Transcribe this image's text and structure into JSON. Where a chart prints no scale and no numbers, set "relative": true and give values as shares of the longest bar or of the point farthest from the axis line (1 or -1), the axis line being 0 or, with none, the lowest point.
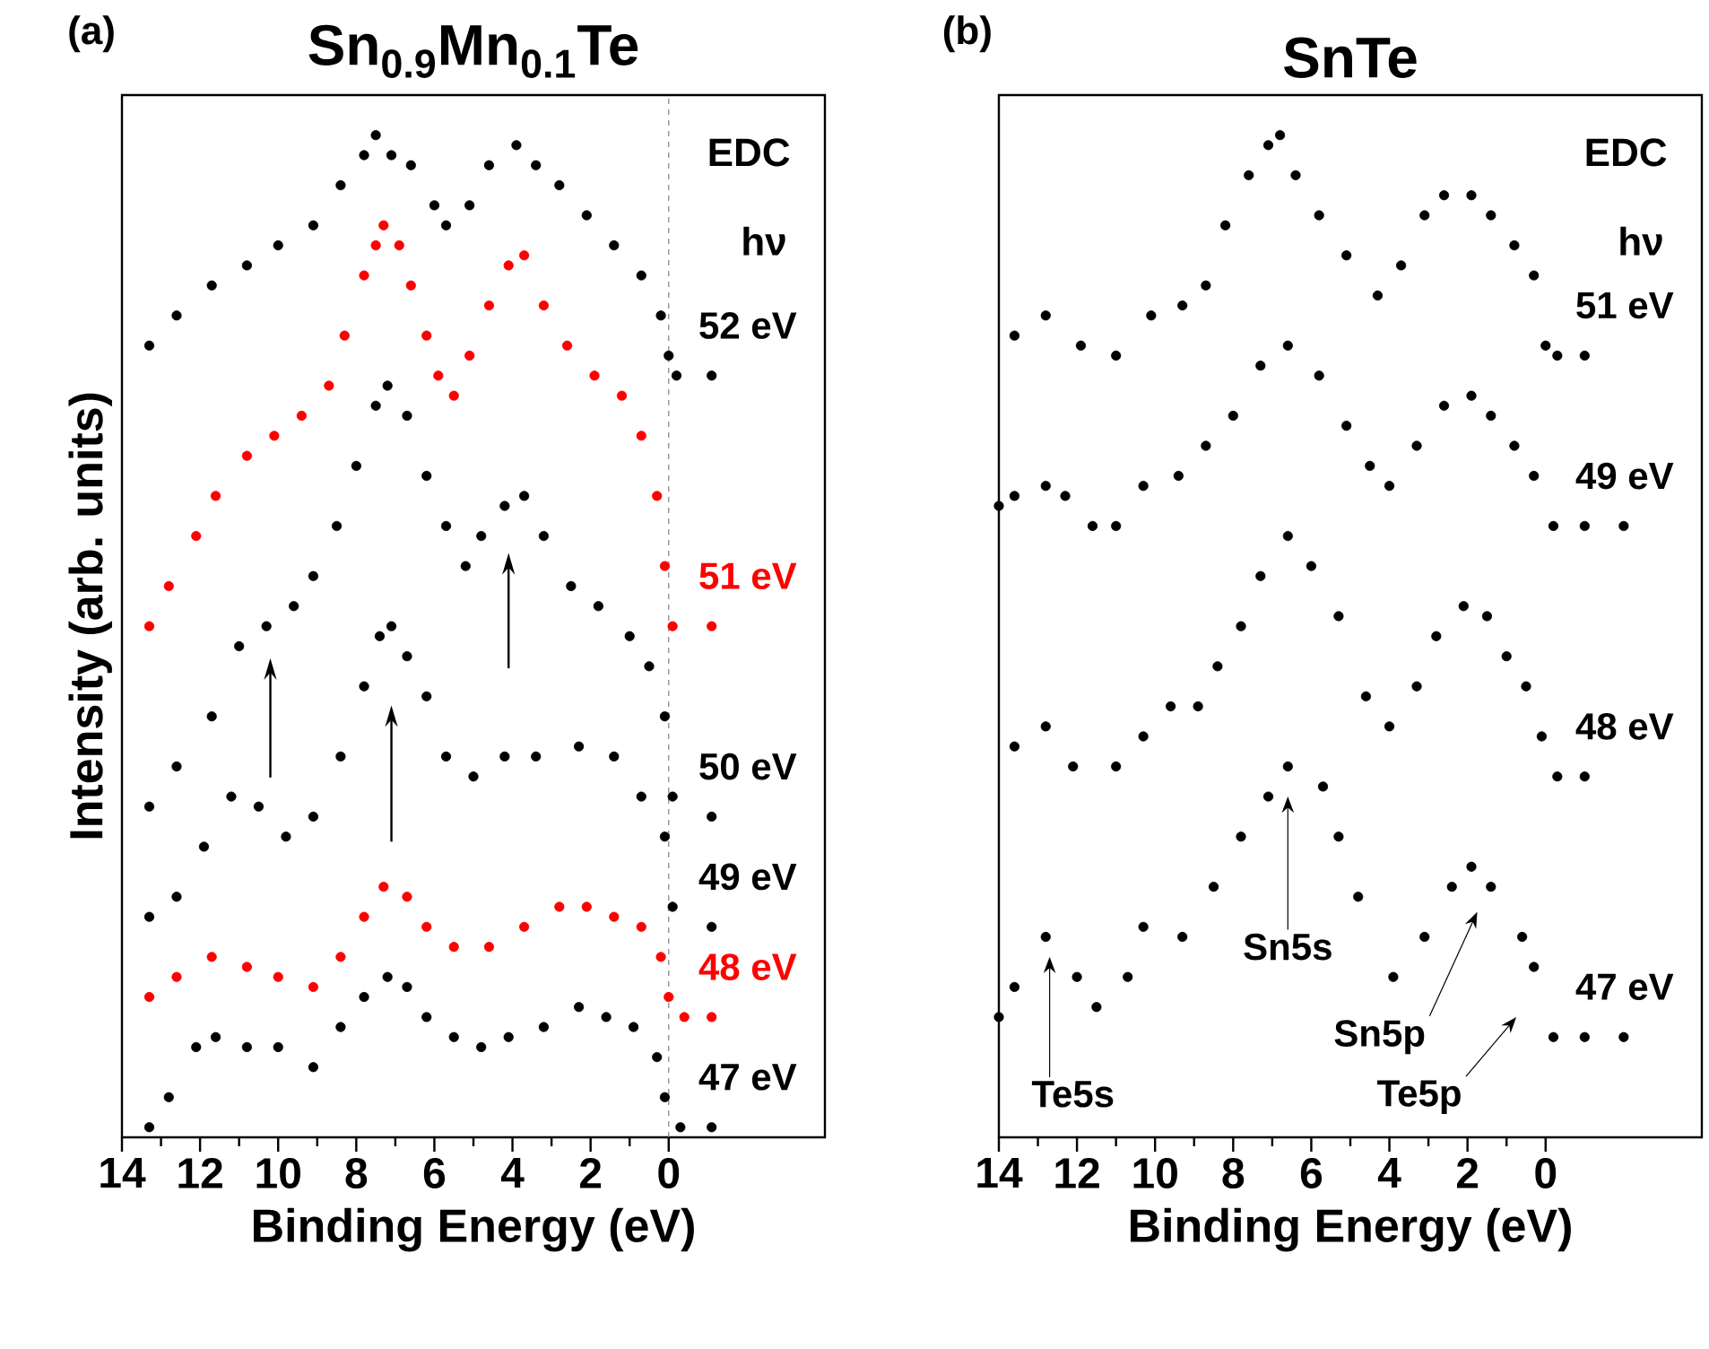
{
  "chart_data": [
    {
      "type": "scatter",
      "title": "Sn$_{0.9}$Mn$_{0.1}$Te",
      "xlabel": "Binding Energy (eV)",
      "ylabel": "Intensity (arb. units)",
      "relative": true,
      "marker": "circle",
      "xlim": [
        14,
        -4
      ],
      "xticks": [
        14,
        12,
        10,
        8,
        6,
        4,
        2,
        0
      ],
      "annotations": [
        "(a)",
        "EDC",
        "hν"
      ],
      "ref_lines": [
        {
          "axis": "x",
          "value": 0,
          "color": "#808080",
          "line_style": "dashed"
        }
      ],
      "series": [
        {
          "name": "52 eV",
          "color": "#000000",
          "x": [
            13.3,
            12.6,
            11.7,
            10.8,
            10.0,
            9.1,
            8.4,
            7.8,
            7.5,
            7.1,
            6.6,
            6.0,
            5.7,
            5.1,
            4.6,
            3.9,
            3.4,
            2.8,
            2.1,
            1.4,
            0.7,
            0.2,
            0.0,
            -0.2,
            -1.1
          ],
          "values": [
            0.79,
            0.82,
            0.85,
            0.87,
            0.89,
            0.91,
            0.95,
            0.98,
            1.0,
            0.98,
            0.97,
            0.93,
            0.91,
            0.93,
            0.97,
            0.99,
            0.97,
            0.95,
            0.92,
            0.89,
            0.86,
            0.82,
            0.78,
            0.76,
            0.76
          ]
        },
        {
          "name": "51 eV",
          "color": "#ff0000",
          "x": [
            13.3,
            12.8,
            12.1,
            11.6,
            10.8,
            10.1,
            9.4,
            8.7,
            8.3,
            7.8,
            7.5,
            7.3,
            6.9,
            6.6,
            6.2,
            5.9,
            5.5,
            5.1,
            4.6,
            4.1,
            3.7,
            3.2,
            2.6,
            1.9,
            1.2,
            0.7,
            0.3,
            0.1,
            -0.1,
            -1.1
          ],
          "values": [
            0.51,
            0.55,
            0.6,
            0.64,
            0.68,
            0.7,
            0.72,
            0.75,
            0.8,
            0.86,
            0.89,
            0.91,
            0.89,
            0.85,
            0.8,
            0.76,
            0.74,
            0.78,
            0.83,
            0.87,
            0.88,
            0.83,
            0.79,
            0.76,
            0.74,
            0.7,
            0.64,
            0.57,
            0.51,
            0.51
          ]
        },
        {
          "name": "50 eV",
          "color": "#000000",
          "x": [
            13.3,
            12.6,
            11.7,
            11.0,
            10.3,
            9.6,
            9.1,
            8.5,
            8.0,
            7.5,
            7.2,
            6.7,
            6.2,
            5.7,
            5.2,
            4.8,
            4.2,
            3.7,
            3.2,
            2.5,
            1.8,
            1.0,
            0.5,
            0.1,
            -0.1,
            -1.1
          ],
          "values": [
            0.33,
            0.37,
            0.42,
            0.49,
            0.51,
            0.53,
            0.56,
            0.61,
            0.67,
            0.73,
            0.75,
            0.72,
            0.66,
            0.61,
            0.57,
            0.6,
            0.63,
            0.64,
            0.6,
            0.55,
            0.53,
            0.5,
            0.47,
            0.42,
            0.34,
            0.32
          ]
        },
        {
          "name": "49 eV",
          "color": "#000000",
          "x": [
            13.3,
            12.6,
            11.9,
            11.2,
            10.5,
            9.8,
            9.1,
            8.4,
            7.8,
            7.4,
            7.1,
            6.7,
            6.2,
            5.7,
            5.0,
            4.2,
            3.4,
            2.3,
            1.4,
            0.7,
            0.1,
            -0.1,
            -1.1
          ],
          "values": [
            0.22,
            0.24,
            0.29,
            0.34,
            0.33,
            0.3,
            0.32,
            0.38,
            0.45,
            0.5,
            0.51,
            0.48,
            0.44,
            0.38,
            0.36,
            0.38,
            0.38,
            0.39,
            0.38,
            0.34,
            0.3,
            0.23,
            0.21
          ]
        },
        {
          "name": "48 eV",
          "color": "#ff0000",
          "x": [
            13.3,
            12.6,
            11.7,
            10.8,
            10.0,
            9.1,
            8.4,
            7.8,
            7.3,
            6.7,
            6.2,
            5.5,
            4.6,
            3.7,
            2.8,
            2.1,
            1.4,
            0.7,
            0.2,
            0.0,
            -0.4,
            -1.1
          ],
          "values": [
            0.14,
            0.16,
            0.18,
            0.17,
            0.16,
            0.15,
            0.18,
            0.22,
            0.25,
            0.24,
            0.21,
            0.19,
            0.19,
            0.21,
            0.23,
            0.23,
            0.22,
            0.21,
            0.18,
            0.14,
            0.12,
            0.12
          ]
        },
        {
          "name": "47 eV",
          "color": "#000000",
          "x": [
            13.3,
            12.8,
            12.1,
            11.6,
            10.8,
            10.0,
            9.1,
            8.4,
            7.8,
            7.2,
            6.7,
            6.2,
            5.5,
            4.8,
            4.1,
            3.2,
            2.3,
            1.6,
            0.9,
            0.3,
            0.1,
            -0.3,
            -1.1
          ],
          "values": [
            0.01,
            0.04,
            0.09,
            0.1,
            0.09,
            0.09,
            0.07,
            0.11,
            0.14,
            0.16,
            0.15,
            0.12,
            0.1,
            0.09,
            0.1,
            0.11,
            0.13,
            0.12,
            0.11,
            0.08,
            0.04,
            0.01,
            0.01
          ]
        }
      ]
    },
    {
      "type": "scatter",
      "title": "SnTe",
      "xlabel": "Binding Energy (eV)",
      "relative": true,
      "marker": "circle",
      "xlim": [
        14,
        -4
      ],
      "xticks": [
        14,
        12,
        10,
        8,
        6,
        4,
        2,
        0
      ],
      "annotations": [
        "(b)",
        "EDC",
        "hν",
        "Te5s",
        "Sn5s",
        "Sn5p",
        "Te5p"
      ],
      "series": [
        {
          "name": "51 eV",
          "color": "#000000",
          "x": [
            13.6,
            12.8,
            11.9,
            11.0,
            10.1,
            9.3,
            8.7,
            8.2,
            7.6,
            7.1,
            6.8,
            6.4,
            5.8,
            5.1,
            4.3,
            3.7,
            3.1,
            2.6,
            1.9,
            1.4,
            0.8,
            0.3,
            0.0,
            -0.3,
            -1.0
          ],
          "values": [
            0.8,
            0.82,
            0.79,
            0.78,
            0.82,
            0.83,
            0.85,
            0.91,
            0.96,
            0.99,
            1.0,
            0.96,
            0.92,
            0.88,
            0.84,
            0.87,
            0.92,
            0.94,
            0.94,
            0.92,
            0.89,
            0.86,
            0.79,
            0.78,
            0.78
          ]
        },
        {
          "name": "49 eV",
          "color": "#000000",
          "x": [
            14.0,
            13.6,
            12.8,
            12.3,
            11.6,
            11.0,
            10.3,
            9.4,
            8.7,
            8.0,
            7.3,
            6.6,
            5.8,
            5.1,
            4.5,
            4.0,
            3.3,
            2.6,
            1.9,
            1.4,
            0.8,
            0.3,
            -0.2,
            -1.0,
            -2.0
          ],
          "values": [
            0.63,
            0.64,
            0.65,
            0.64,
            0.61,
            0.61,
            0.65,
            0.66,
            0.69,
            0.72,
            0.77,
            0.79,
            0.76,
            0.71,
            0.67,
            0.65,
            0.69,
            0.73,
            0.74,
            0.72,
            0.69,
            0.66,
            0.61,
            0.61,
            0.61
          ]
        },
        {
          "name": "48 eV",
          "color": "#000000",
          "x": [
            13.6,
            12.8,
            12.1,
            11.0,
            10.3,
            9.6,
            8.9,
            8.4,
            7.8,
            7.3,
            6.6,
            6.0,
            5.3,
            4.6,
            4.0,
            3.3,
            2.8,
            2.1,
            1.5,
            1.0,
            0.5,
            0.1,
            -0.3,
            -1.0
          ],
          "values": [
            0.39,
            0.41,
            0.37,
            0.37,
            0.4,
            0.43,
            0.43,
            0.47,
            0.51,
            0.56,
            0.6,
            0.57,
            0.52,
            0.44,
            0.41,
            0.45,
            0.5,
            0.53,
            0.52,
            0.48,
            0.45,
            0.4,
            0.36,
            0.36
          ]
        },
        {
          "name": "47 eV",
          "color": "#000000",
          "x": [
            14.0,
            13.6,
            12.8,
            12.0,
            11.5,
            10.7,
            10.3,
            9.3,
            8.5,
            7.8,
            7.1,
            6.6,
            5.7,
            5.3,
            4.8,
            3.9,
            3.1,
            2.4,
            1.9,
            1.4,
            0.6,
            0.3,
            -0.2,
            -1.0,
            -2.0
          ],
          "values": [
            0.12,
            0.15,
            0.2,
            0.16,
            0.13,
            0.16,
            0.21,
            0.2,
            0.25,
            0.3,
            0.34,
            0.37,
            0.35,
            0.3,
            0.24,
            0.16,
            0.2,
            0.25,
            0.27,
            0.25,
            0.2,
            0.17,
            0.1,
            0.1,
            0.1
          ]
        }
      ]
    }
  ]
}
